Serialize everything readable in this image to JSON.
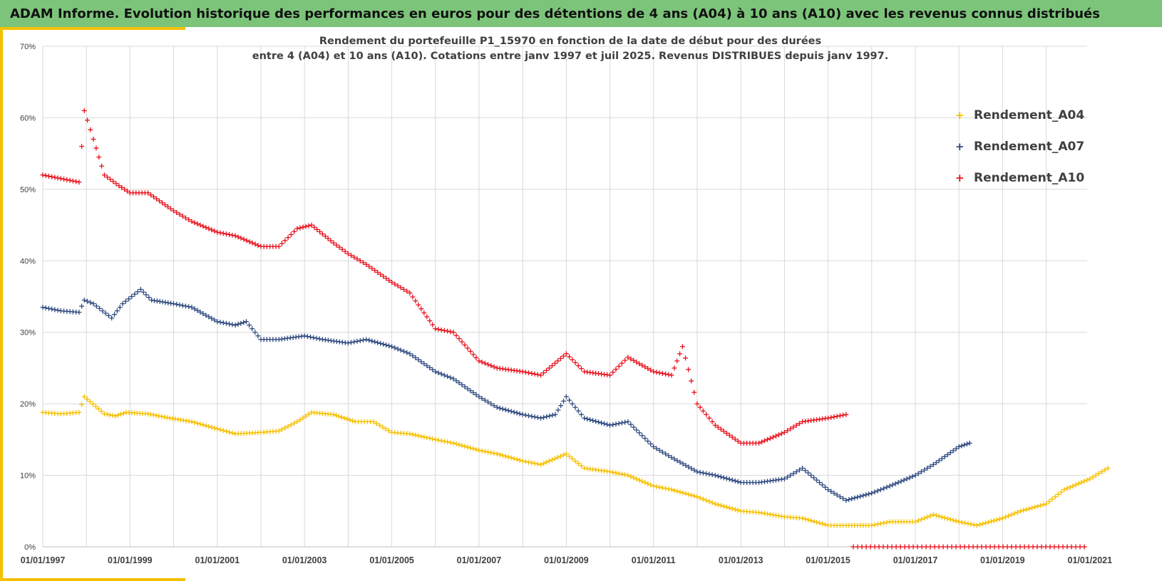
{
  "banner": {
    "title": "ADAM Informe. Evolution historique des performances en euros pour des détentions de 4 ans (A04) à 10 ans (A10) avec les revenus connus distribués"
  },
  "colors": {
    "banner_bg": "#7cc47a",
    "accent": "#f5c000",
    "A04": "#f5c000",
    "A07": "#2f4a7f",
    "A10": "#e8111b",
    "grid": "#d9d9d9"
  },
  "chart_data": {
    "type": "scatter",
    "marker": "+",
    "title_line1": "Rendement du portefeuille P1_15970 en fonction de la date de début pour des durées",
    "title_line2": "entre 4 (A04) et 10 ans (A10). Cotations entre janv 1997 et juil 2025. Revenus DISTRIBUES depuis janv 1997.",
    "xlabel": "",
    "ylabel": "",
    "x_range": [
      "1997-01-01",
      "2022-01-01"
    ],
    "ylim": [
      0,
      70
    ],
    "y_ticks": [
      "0%",
      "10%",
      "20%",
      "30%",
      "40%",
      "50%",
      "60%",
      "70%"
    ],
    "x_ticks": [
      "01/01/1997",
      "01/01/1999",
      "01/01/2001",
      "01/01/2003",
      "01/01/2005",
      "01/01/2007",
      "01/01/2009",
      "01/01/2011",
      "01/01/2013",
      "01/01/2015",
      "01/01/2017",
      "01/01/2019",
      "01/01/2021"
    ],
    "grid": true,
    "legend_position": "top-right",
    "series": [
      {
        "name": "Rendement_A04",
        "color": "#f5c000",
        "points": [
          [
            "1997-01-01",
            18.8
          ],
          [
            "1997-06-01",
            18.6
          ],
          [
            "1997-11-01",
            18.8
          ],
          [
            "1997-12-15",
            21.0
          ],
          [
            "1998-06-01",
            18.6
          ],
          [
            "1998-09-01",
            18.3
          ],
          [
            "1998-12-01",
            18.8
          ],
          [
            "1999-06-01",
            18.6
          ],
          [
            "1999-12-01",
            18.0
          ],
          [
            "2000-06-01",
            17.5
          ],
          [
            "2001-01-01",
            16.5
          ],
          [
            "2001-06-01",
            15.8
          ],
          [
            "2002-01-01",
            16.0
          ],
          [
            "2002-06-01",
            16.2
          ],
          [
            "2002-11-01",
            17.5
          ],
          [
            "2003-03-01",
            18.8
          ],
          [
            "2003-09-01",
            18.5
          ],
          [
            "2004-03-01",
            17.5
          ],
          [
            "2004-08-01",
            17.5
          ],
          [
            "2005-01-01",
            16.0
          ],
          [
            "2005-06-01",
            15.8
          ],
          [
            "2006-01-01",
            15.0
          ],
          [
            "2006-06-01",
            14.5
          ],
          [
            "2007-01-01",
            13.5
          ],
          [
            "2007-06-01",
            13.0
          ],
          [
            "2008-01-01",
            12.0
          ],
          [
            "2008-06-01",
            11.5
          ],
          [
            "2009-01-01",
            13.0
          ],
          [
            "2009-06-01",
            11.0
          ],
          [
            "2010-01-01",
            10.5
          ],
          [
            "2010-06-01",
            10.0
          ],
          [
            "2011-01-01",
            8.5
          ],
          [
            "2011-06-01",
            8.0
          ],
          [
            "2012-01-01",
            7.0
          ],
          [
            "2012-06-01",
            6.0
          ],
          [
            "2013-01-01",
            5.0
          ],
          [
            "2013-06-01",
            4.8
          ],
          [
            "2014-01-01",
            4.2
          ],
          [
            "2014-06-01",
            4.0
          ],
          [
            "2015-01-01",
            3.0
          ],
          [
            "2015-06-01",
            3.0
          ],
          [
            "2016-01-01",
            3.0
          ],
          [
            "2016-06-01",
            3.5
          ],
          [
            "2017-01-01",
            3.5
          ],
          [
            "2017-06-01",
            4.5
          ],
          [
            "2018-01-01",
            3.5
          ],
          [
            "2018-06-01",
            3.0
          ],
          [
            "2019-01-01",
            4.0
          ],
          [
            "2019-06-01",
            5.0
          ],
          [
            "2020-01-01",
            6.0
          ],
          [
            "2020-06-01",
            8.0
          ],
          [
            "2021-01-01",
            9.5
          ],
          [
            "2021-06-01",
            11.0
          ]
        ]
      },
      {
        "name": "Rendement_A07",
        "color": "#2f4a7f",
        "points": [
          [
            "1997-01-01",
            33.5
          ],
          [
            "1997-06-01",
            33.0
          ],
          [
            "1997-11-01",
            32.8
          ],
          [
            "1997-12-15",
            34.5
          ],
          [
            "1998-03-01",
            34.0
          ],
          [
            "1998-08-01",
            32.0
          ],
          [
            "1998-11-01",
            34.0
          ],
          [
            "1999-04-01",
            36.0
          ],
          [
            "1999-07-01",
            34.5
          ],
          [
            "2000-01-01",
            34.0
          ],
          [
            "2000-06-01",
            33.5
          ],
          [
            "2001-01-01",
            31.5
          ],
          [
            "2001-06-01",
            31.0
          ],
          [
            "2001-09-01",
            31.5
          ],
          [
            "2002-01-01",
            29.0
          ],
          [
            "2002-06-01",
            29.0
          ],
          [
            "2003-01-01",
            29.5
          ],
          [
            "2003-06-01",
            29.0
          ],
          [
            "2004-01-01",
            28.5
          ],
          [
            "2004-06-01",
            29.0
          ],
          [
            "2005-01-01",
            28.0
          ],
          [
            "2005-06-01",
            27.0
          ],
          [
            "2006-01-01",
            24.5
          ],
          [
            "2006-06-01",
            23.5
          ],
          [
            "2007-01-01",
            21.0
          ],
          [
            "2007-06-01",
            19.5
          ],
          [
            "2008-01-01",
            18.5
          ],
          [
            "2008-06-01",
            18.0
          ],
          [
            "2008-10-01",
            18.5
          ],
          [
            "2009-01-01",
            21.0
          ],
          [
            "2009-06-01",
            18.0
          ],
          [
            "2010-01-01",
            17.0
          ],
          [
            "2010-06-01",
            17.5
          ],
          [
            "2011-01-01",
            14.0
          ],
          [
            "2011-06-01",
            12.5
          ],
          [
            "2012-01-01",
            10.5
          ],
          [
            "2012-06-01",
            10.0
          ],
          [
            "2013-01-01",
            9.0
          ],
          [
            "2013-06-01",
            9.0
          ],
          [
            "2014-01-01",
            9.5
          ],
          [
            "2014-06-01",
            11.0
          ],
          [
            "2015-01-01",
            8.0
          ],
          [
            "2015-06-01",
            6.5
          ],
          [
            "2016-01-01",
            7.5
          ],
          [
            "2016-06-01",
            8.5
          ],
          [
            "2017-01-01",
            10.0
          ],
          [
            "2017-06-01",
            11.5
          ],
          [
            "2018-01-01",
            14.0
          ],
          [
            "2018-04-01",
            14.5
          ]
        ]
      },
      {
        "name": "Rendement_A10",
        "color": "#e8111b",
        "points": [
          [
            "1997-01-01",
            52.0
          ],
          [
            "1997-06-01",
            51.5
          ],
          [
            "1997-11-01",
            51.0
          ],
          [
            "1997-12-15",
            61.0
          ],
          [
            "1998-03-01",
            57.0
          ],
          [
            "1998-06-01",
            52.0
          ],
          [
            "1998-10-01",
            50.5
          ],
          [
            "1999-01-01",
            49.5
          ],
          [
            "1999-06-01",
            49.5
          ],
          [
            "2000-01-01",
            47.0
          ],
          [
            "2000-06-01",
            45.5
          ],
          [
            "2001-01-01",
            44.0
          ],
          [
            "2001-06-01",
            43.5
          ],
          [
            "2002-01-01",
            42.0
          ],
          [
            "2002-06-01",
            42.0
          ],
          [
            "2002-11-01",
            44.5
          ],
          [
            "2003-03-01",
            45.0
          ],
          [
            "2003-09-01",
            42.5
          ],
          [
            "2004-01-01",
            41.0
          ],
          [
            "2004-06-01",
            39.5
          ],
          [
            "2005-01-01",
            37.0
          ],
          [
            "2005-06-01",
            35.5
          ],
          [
            "2006-01-01",
            30.5
          ],
          [
            "2006-06-01",
            30.0
          ],
          [
            "2007-01-01",
            26.0
          ],
          [
            "2007-06-01",
            25.0
          ],
          [
            "2008-01-01",
            24.5
          ],
          [
            "2008-06-01",
            24.0
          ],
          [
            "2009-01-01",
            27.0
          ],
          [
            "2009-06-01",
            24.5
          ],
          [
            "2010-01-01",
            24.0
          ],
          [
            "2010-06-01",
            26.5
          ],
          [
            "2011-01-01",
            24.5
          ],
          [
            "2011-06-01",
            24.0
          ],
          [
            "2011-09-01",
            28.0
          ],
          [
            "2012-01-01",
            20.0
          ],
          [
            "2012-06-01",
            17.0
          ],
          [
            "2013-01-01",
            14.5
          ],
          [
            "2013-06-01",
            14.5
          ],
          [
            "2014-01-01",
            16.0
          ],
          [
            "2014-06-01",
            17.5
          ],
          [
            "2015-01-01",
            18.0
          ],
          [
            "2015-06-01",
            18.5
          ]
        ],
        "zero_run": [
          "2015-08-01",
          "2022-01-01"
        ]
      }
    ]
  }
}
